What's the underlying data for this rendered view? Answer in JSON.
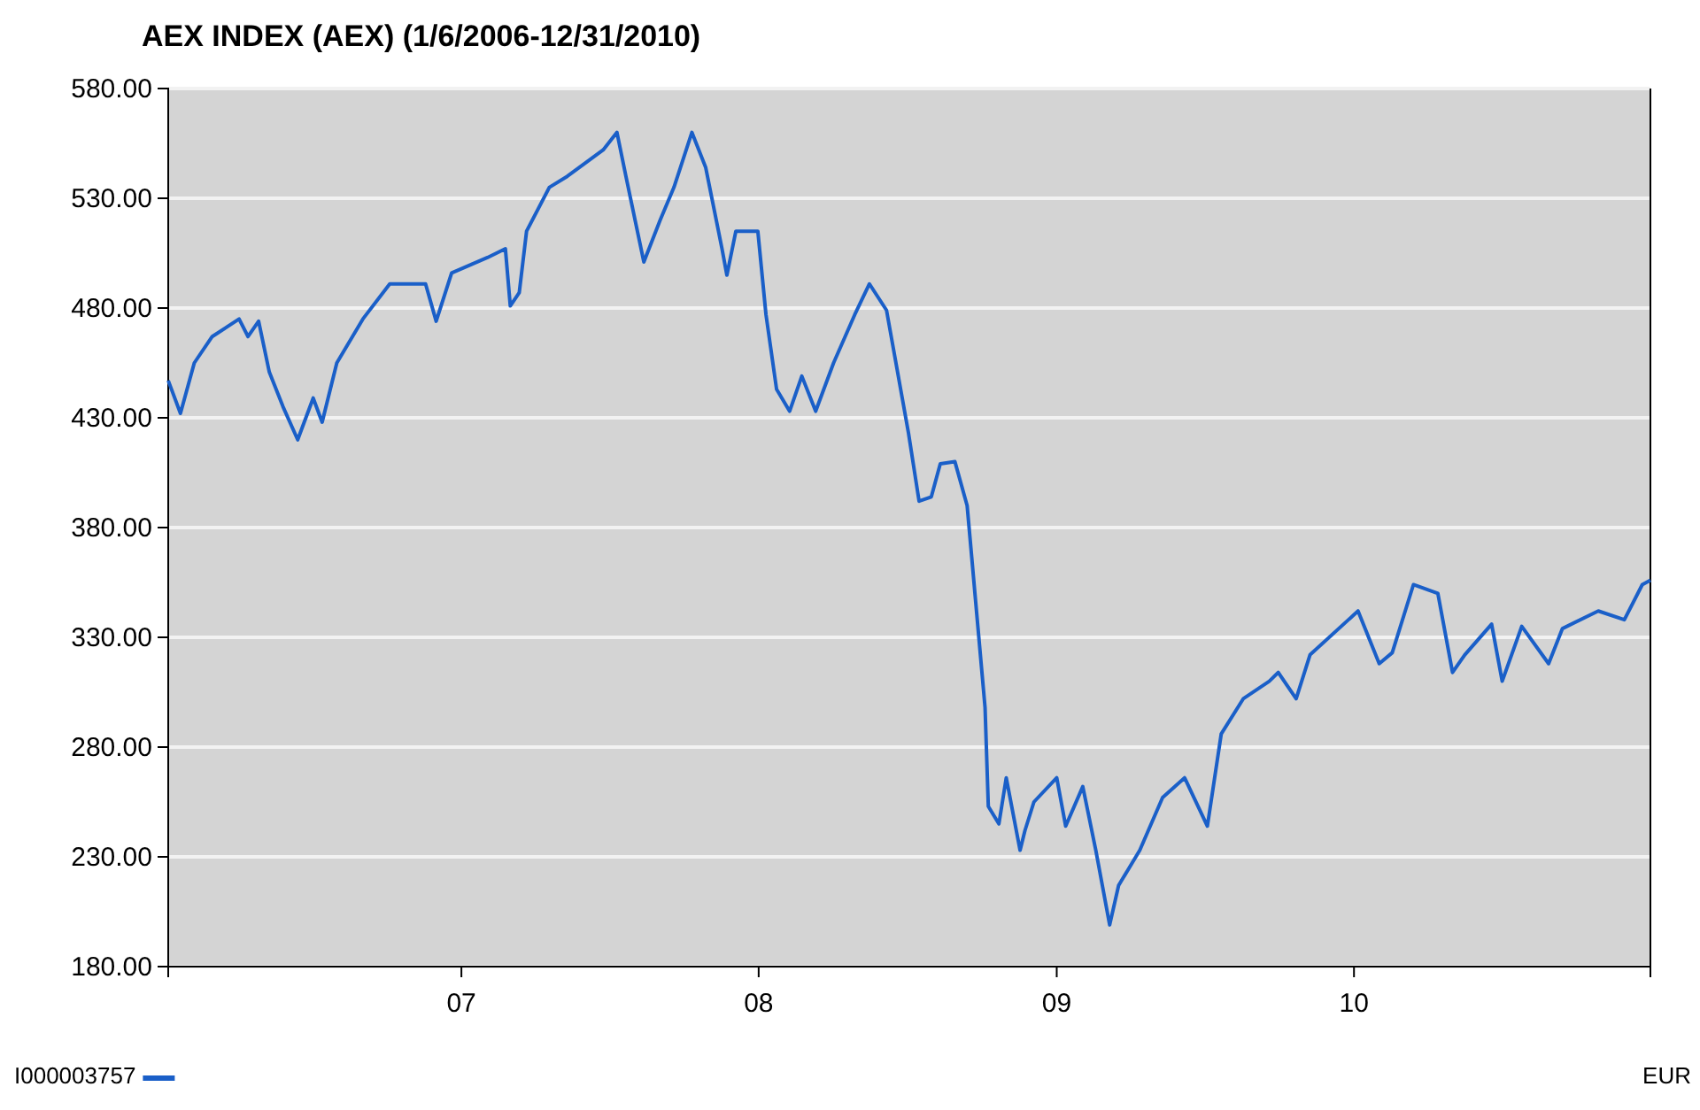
{
  "chart_data": {
    "type": "line",
    "title": "AEX INDEX (AEX) (1/6/2006-12/31/2010)",
    "annotations": [
      "EUR"
    ],
    "xlim": [
      "2006-01-06",
      "2010-12-31"
    ],
    "xticks": [
      {
        "value": "2007-01-01",
        "label": "07"
      },
      {
        "value": "2008-01-01",
        "label": "08"
      },
      {
        "value": "2009-01-01",
        "label": "09"
      },
      {
        "value": "2010-01-01",
        "label": "10"
      }
    ],
    "ylim": [
      180,
      580
    ],
    "yticks": [
      {
        "value": 180,
        "label": "180.00"
      },
      {
        "value": 230,
        "label": "230.00"
      },
      {
        "value": 280,
        "label": "280.00"
      },
      {
        "value": 330,
        "label": "330.00"
      },
      {
        "value": 380,
        "label": "380.00"
      },
      {
        "value": 430,
        "label": "430.00"
      },
      {
        "value": 480,
        "label": "480.00"
      },
      {
        "value": 530,
        "label": "530.00"
      },
      {
        "value": 580,
        "label": "580.00"
      }
    ],
    "grid": "y",
    "legend": "bottom left",
    "marker": "none",
    "line_style": "solid",
    "series": [
      {
        "name": "I000003757",
        "color": "#1a5fc8",
        "x": [
          "2006-01-06",
          "2006-01-21",
          "2006-02-07",
          "2006-03-01",
          "2006-04-03",
          "2006-04-14",
          "2006-04-27",
          "2006-05-10",
          "2006-05-27",
          "2006-06-14",
          "2006-07-03",
          "2006-07-14",
          "2006-08-01",
          "2006-09-02",
          "2006-10-05",
          "2006-11-18",
          "2006-12-01",
          "2006-12-20",
          "2007-02-02",
          "2007-02-24",
          "2007-03-02",
          "2007-03-13",
          "2007-03-22",
          "2007-04-19",
          "2007-05-11",
          "2007-06-24",
          "2007-07-11",
          "2007-07-22",
          "2007-08-13",
          "2007-09-02",
          "2007-09-19",
          "2007-10-11",
          "2007-10-28",
          "2007-11-17",
          "2007-11-23",
          "2007-12-04",
          "2007-12-31",
          "2008-01-10",
          "2008-01-23",
          "2008-02-08",
          "2008-02-23",
          "2008-03-11",
          "2008-04-02",
          "2008-04-28",
          "2008-05-16",
          "2008-06-06",
          "2008-07-03",
          "2008-07-16",
          "2008-07-31",
          "2008-08-11",
          "2008-08-29",
          "2008-09-13",
          "2008-10-05",
          "2008-10-09",
          "2008-10-22",
          "2008-10-31",
          "2008-11-17",
          "2008-11-23",
          "2008-12-04",
          "2009-01-01",
          "2009-01-12",
          "2009-02-02",
          "2009-02-18",
          "2009-03-07",
          "2009-03-18",
          "2009-04-13",
          "2009-05-11",
          "2009-06-07",
          "2009-07-05",
          "2009-07-22",
          "2009-08-18",
          "2009-09-19",
          "2009-09-30",
          "2009-10-22",
          "2009-11-08",
          "2010-01-06",
          "2010-02-01",
          "2010-02-17",
          "2010-03-15",
          "2010-04-14",
          "2010-05-02",
          "2010-05-17",
          "2010-06-19",
          "2010-07-02",
          "2010-07-26",
          "2010-08-28",
          "2010-09-14",
          "2010-10-28",
          "2010-11-29",
          "2010-12-21",
          "2010-12-31"
        ],
        "values": [
          447,
          432,
          455,
          467,
          475,
          467,
          474,
          451,
          435,
          420,
          439,
          428,
          455,
          475,
          491,
          491,
          474,
          496,
          503,
          507,
          481,
          487,
          515,
          535,
          540,
          552,
          560,
          540,
          501,
          520,
          535,
          560,
          544,
          507,
          495,
          515,
          515,
          477,
          443,
          433,
          449,
          433,
          455,
          477,
          491,
          479,
          423,
          392,
          394,
          409,
          410,
          390,
          298,
          253,
          245,
          266,
          233,
          242,
          255,
          266,
          244,
          262,
          233,
          199,
          217,
          233,
          257,
          266,
          244,
          286,
          302,
          310,
          314,
          302,
          322,
          342,
          318,
          323,
          354,
          350,
          314,
          322,
          336,
          310,
          335,
          318,
          334,
          342,
          338,
          354,
          356
        ]
      }
    ]
  }
}
